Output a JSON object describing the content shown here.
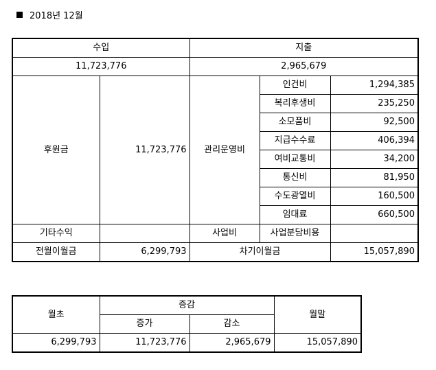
{
  "header": {
    "title": "2018년 12월"
  },
  "summary": {
    "income_label": "수입",
    "income_total": "11,723,776",
    "expense_label": "지출",
    "expense_total": "2,965,679"
  },
  "income": {
    "donation_label": "후원금",
    "donation_value": "11,723,776",
    "other_label": "기타수익",
    "other_value": ""
  },
  "expense": {
    "admin_label": "관리운영비",
    "items": [
      {
        "label": "인건비",
        "value": "1,294,385"
      },
      {
        "label": "복리후생비",
        "value": "235,250"
      },
      {
        "label": "소모품비",
        "value": "92,500"
      },
      {
        "label": "지급수수료",
        "value": "406,394"
      },
      {
        "label": "여비교통비",
        "value": "34,200"
      },
      {
        "label": "통신비",
        "value": "81,950"
      },
      {
        "label": "수도광열비",
        "value": "160,500"
      },
      {
        "label": "임대료",
        "value": "660,500"
      }
    ],
    "business_label": "사업비",
    "business_item_label": "사업분담비용",
    "business_item_value": ""
  },
  "carry": {
    "prev_label": "전월이월금",
    "prev_value": "6,299,793",
    "next_label": "차기이월금",
    "next_value": "15,057,890"
  },
  "balance": {
    "start_label": "월초",
    "change_label": "증감",
    "increase_label": "증가",
    "decrease_label": "감소",
    "end_label": "월말",
    "start_value": "6,299,793",
    "increase_value": "11,723,776",
    "decrease_value": "2,965,679",
    "end_value": "15,057,890"
  }
}
